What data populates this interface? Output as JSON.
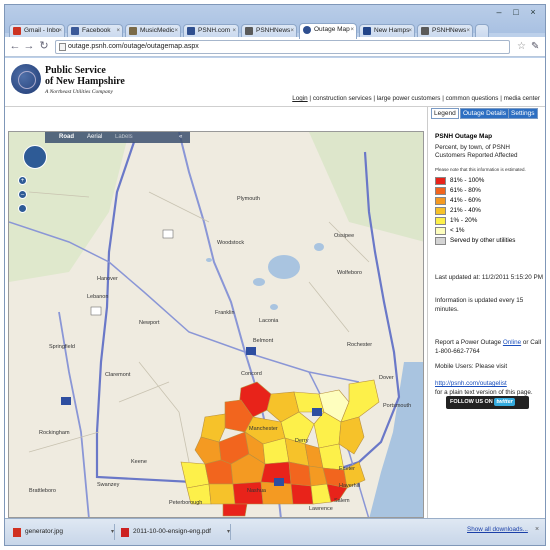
{
  "browser": {
    "tabs": [
      {
        "label": "Gmail - Inbo",
        "color": "#cc3322"
      },
      {
        "label": "Facebook",
        "color": "#3b5998"
      },
      {
        "label": "MusicMedic",
        "color": "#7a6a48"
      },
      {
        "label": "PSNH.com",
        "color": "#2f4f8f"
      },
      {
        "label": "PSNHNews",
        "color": "#5a5a5a"
      },
      {
        "label": "Outage Map",
        "color": "#2f4f8f"
      },
      {
        "label": "New Hamps",
        "color": "#224488"
      },
      {
        "label": "PSNHNews",
        "color": "#5a5a5a"
      }
    ],
    "url": "outage.psnh.com/outage/outagemap.aspx"
  },
  "header": {
    "company_line1": "Public Service",
    "company_line2": "of New Hampshire",
    "company_sub": "A Northeast Utilities Company",
    "nav": [
      "Login",
      "construction services",
      "large power customers",
      "common questions",
      "media center"
    ]
  },
  "map": {
    "types": [
      "Road",
      "Aerial",
      "Labels"
    ],
    "collapse": "«",
    "towns": [
      {
        "name": "Plymouth"
      },
      {
        "name": "Hanover"
      },
      {
        "name": "Lebanon"
      },
      {
        "name": "Claremont"
      },
      {
        "name": "Laconia"
      },
      {
        "name": "Concord"
      },
      {
        "name": "Manchester"
      },
      {
        "name": "Nashua"
      },
      {
        "name": "Keene"
      },
      {
        "name": "Dover"
      },
      {
        "name": "Rochester"
      },
      {
        "name": "Portsmouth"
      },
      {
        "name": "Derry"
      },
      {
        "name": "Exeter"
      },
      {
        "name": "Franklin"
      },
      {
        "name": "Newport"
      },
      {
        "name": "Peterborough"
      },
      {
        "name": "Lawrence"
      },
      {
        "name": "Haverhill"
      },
      {
        "name": "Belmont"
      },
      {
        "name": "Wolfeboro"
      },
      {
        "name": "Ossipee"
      },
      {
        "name": "Springfield"
      },
      {
        "name": "Rockingham"
      },
      {
        "name": "Brattleboro"
      },
      {
        "name": "Swanzey"
      },
      {
        "name": "Woodstock"
      },
      {
        "name": "Salem"
      }
    ]
  },
  "panel": {
    "tabs": [
      "Legend",
      "Outage Details",
      "Settings"
    ],
    "title": "PSNH Outage Map",
    "description": "Percent, by town, of PSNH Customers Reported Affected",
    "note": "Please note that this information is estimated.",
    "legend": [
      {
        "label": "81% - 100%",
        "color": "#e8231a"
      },
      {
        "label": "61% - 80%",
        "color": "#f2651e"
      },
      {
        "label": "41% - 60%",
        "color": "#f49a22"
      },
      {
        "label": "21% - 40%",
        "color": "#f6c22a"
      },
      {
        "label": "1% - 20%",
        "color": "#fdf04a"
      },
      {
        "label": "< 1%",
        "color": "#fefebe"
      },
      {
        "label": "Served by other utilities",
        "color": "#d4d4d4"
      }
    ],
    "last_updated": "Last updated at: 11/2/2011 5:15:20 PM",
    "refresh": "Information is updated every 15 minutes.",
    "report_pre": "Report a Power Outage ",
    "report_link": "Online",
    "report_post": " or Call 1-800-662-7764",
    "mobile": "Mobile Users: Please visit",
    "mobile_link": "http://psnh.com/outagelist",
    "mobile_post": "for a plain text version of this page.",
    "twitter_pre": "FOLLOW US ON",
    "twitter_brand": "twitter"
  },
  "downloads": {
    "items": [
      "generator.jpg",
      "2011-10-00-ensign-eng.pdf"
    ],
    "show_all": "Show all downloads...",
    "close": "×"
  }
}
